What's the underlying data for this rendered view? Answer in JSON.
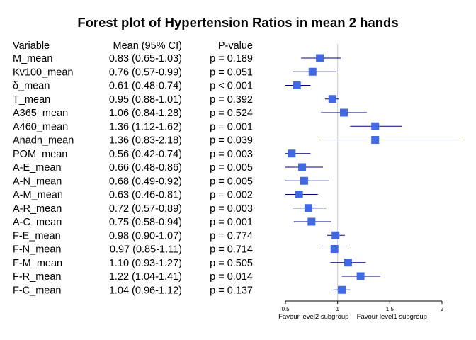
{
  "chart_data": {
    "type": "forest",
    "title": "Forest plot of Hypertension Ratios in mean 2 hands",
    "columns": [
      "Variable",
      "Mean (95% CI)",
      "P-value"
    ],
    "reference_line": 1,
    "xlim": [
      0.5,
      2
    ],
    "x_ticks": [
      0.5,
      1,
      1.5,
      2
    ],
    "x_tick_labels": [
      "0.5",
      "1",
      "1.5",
      "2"
    ],
    "left_note": "Favour level2 subgroup",
    "right_note": "Favour level1 subgroup",
    "marker_color": "#4169E1",
    "rows": [
      {
        "variable": "M_mean",
        "ci_text": "0.83 (0.65-1.03)",
        "p_text": "p = 0.189",
        "mean": 0.83,
        "lower": 0.65,
        "upper": 1.03
      },
      {
        "variable": "Kv100_mean",
        "ci_text": "0.76 (0.57-0.99)",
        "p_text": "p = 0.051",
        "mean": 0.76,
        "lower": 0.57,
        "upper": 0.99
      },
      {
        "variable": "δ_mean",
        "ci_text": "0.61 (0.48-0.74)",
        "p_text": "p < 0.001",
        "mean": 0.61,
        "lower": 0.48,
        "upper": 0.74
      },
      {
        "variable": "T_mean",
        "ci_text": "0.95 (0.88-1.01)",
        "p_text": "p = 0.392",
        "mean": 0.95,
        "lower": 0.88,
        "upper": 1.01
      },
      {
        "variable": "A365_mean",
        "ci_text": "1.06 (0.84-1.28)",
        "p_text": "p = 0.524",
        "mean": 1.06,
        "lower": 0.84,
        "upper": 1.28
      },
      {
        "variable": "A460_mean",
        "ci_text": "1.36 (1.12-1.62)",
        "p_text": "p = 0.001",
        "mean": 1.36,
        "lower": 1.12,
        "upper": 1.62
      },
      {
        "variable": "Anadn_mean",
        "ci_text": "1.36 (0.83-2.18)",
        "p_text": "p = 0.039",
        "mean": 1.36,
        "lower": 0.83,
        "upper": 2.18
      },
      {
        "variable": "POM_mean",
        "ci_text": "0.56 (0.42-0.74)",
        "p_text": "p = 0.003",
        "mean": 0.56,
        "lower": 0.42,
        "upper": 0.74
      },
      {
        "variable": "A-E_mean",
        "ci_text": "0.66 (0.48-0.86)",
        "p_text": "p = 0.005",
        "mean": 0.66,
        "lower": 0.48,
        "upper": 0.86
      },
      {
        "variable": "A-N_mean",
        "ci_text": "0.68 (0.49-0.92)",
        "p_text": "p = 0.005",
        "mean": 0.68,
        "lower": 0.49,
        "upper": 0.92
      },
      {
        "variable": "A-M_mean",
        "ci_text": "0.63 (0.46-0.81)",
        "p_text": "p = 0.002",
        "mean": 0.63,
        "lower": 0.46,
        "upper": 0.81
      },
      {
        "variable": "A-R_mean",
        "ci_text": "0.72 (0.57-0.89)",
        "p_text": "p = 0.003",
        "mean": 0.72,
        "lower": 0.57,
        "upper": 0.89
      },
      {
        "variable": "A-C_mean",
        "ci_text": "0.75 (0.58-0.94)",
        "p_text": "p = 0.001",
        "mean": 0.75,
        "lower": 0.58,
        "upper": 0.94
      },
      {
        "variable": "F-E_mean",
        "ci_text": "0.98 (0.90-1.07)",
        "p_text": "p = 0.774",
        "mean": 0.98,
        "lower": 0.9,
        "upper": 1.07
      },
      {
        "variable": "F-N_mean",
        "ci_text": "0.97 (0.85-1.11)",
        "p_text": "p = 0.714",
        "mean": 0.97,
        "lower": 0.85,
        "upper": 1.11
      },
      {
        "variable": "F-M_mean",
        "ci_text": "1.10 (0.93-1.27)",
        "p_text": "p = 0.505",
        "mean": 1.1,
        "lower": 0.93,
        "upper": 1.27
      },
      {
        "variable": "F-R_mean",
        "ci_text": "1.22 (1.04-1.41)",
        "p_text": "p = 0.014",
        "mean": 1.22,
        "lower": 1.04,
        "upper": 1.41
      },
      {
        "variable": "F-C_mean",
        "ci_text": "1.04 (0.96-1.12)",
        "p_text": "p = 0.137",
        "mean": 1.04,
        "lower": 0.96,
        "upper": 1.12
      }
    ]
  }
}
